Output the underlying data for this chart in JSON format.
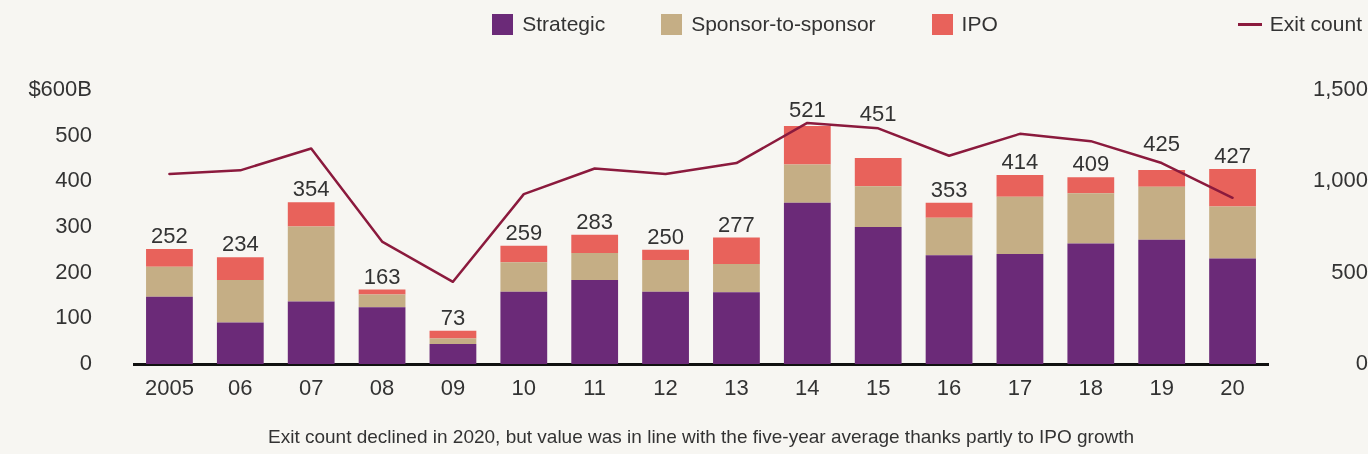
{
  "chart_data": {
    "type": "bar",
    "stacked": true,
    "categories": [
      "2005",
      "06",
      "07",
      "08",
      "09",
      "10",
      "11",
      "12",
      "13",
      "14",
      "15",
      "16",
      "17",
      "18",
      "19",
      "20"
    ],
    "series": [
      {
        "name": "Strategic",
        "color": "#6b2a78",
        "values": [
          147,
          91,
          137,
          124,
          44,
          158,
          184,
          158,
          157,
          353,
          300,
          238,
          241,
          264,
          272,
          231
        ]
      },
      {
        "name": "Sponsor-to-sponsor",
        "color": "#c5ae85",
        "values": [
          66,
          93,
          164,
          28,
          12,
          65,
          59,
          70,
          62,
          84,
          89,
          82,
          125,
          110,
          116,
          114
        ]
      },
      {
        "name": "IPO",
        "color": "#e8625b",
        "values": [
          39,
          50,
          53,
          11,
          17,
          36,
          40,
          22,
          58,
          84,
          62,
          33,
          48,
          35,
          37,
          82
        ]
      },
      {
        "name": "Exit count",
        "type": "line",
        "axis": "y2",
        "color": "#8b1a3d",
        "values": [
          1040,
          1060,
          1180,
          670,
          450,
          930,
          1070,
          1040,
          1100,
          1320,
          1290,
          1140,
          1260,
          1220,
          1100,
          910
        ]
      }
    ],
    "totals": [
      "252",
      "234",
      "354",
      "163",
      "73",
      "259",
      "283",
      "250",
      "277",
      "521",
      "451",
      "353",
      "414",
      "409",
      "425",
      "427"
    ],
    "ylim": [
      0,
      600
    ],
    "yticks": [
      0,
      100,
      200,
      300,
      400,
      500,
      {
        "value": 600,
        "label": "$600B"
      }
    ],
    "y2lim": [
      0,
      1500
    ],
    "y2ticks": [
      0,
      500,
      {
        "value": 1000,
        "label": "1,000"
      },
      {
        "value": 1500,
        "label": "1,500"
      }
    ],
    "legend": "top right",
    "grid": false,
    "annotations": [
      "Exit count declined in 2020, but value was in line with the five-year average thanks partly to IPO growth"
    ]
  }
}
